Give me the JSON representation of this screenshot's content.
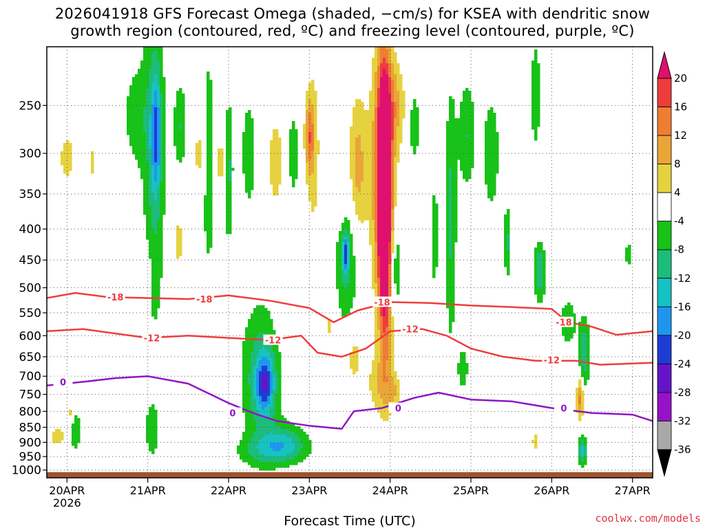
{
  "title": {
    "line1": "2026041918 GFS Forecast Omega (shaded, −cm/s) for KSEA with dendritic snow",
    "line2": "growth region (contoured, red, ºC) and freezing level (contoured, purple, ºC)"
  },
  "credit": "coolwx.com/models",
  "chart_data": {
    "type": "heatmap",
    "xlabel": "Forecast Time (UTC)",
    "ylabel": "",
    "x_ticks": [
      "20APR",
      "21APR",
      "22APR",
      "23APR",
      "24APR",
      "25APR",
      "26APR",
      "27APR"
    ],
    "x_year_label": "2026",
    "x_range_days": [
      -0.25,
      7.25
    ],
    "y_axis": "pressure (hPa), log scale, inverted",
    "y_ticks": [
      250,
      300,
      350,
      400,
      450,
      500,
      550,
      600,
      650,
      700,
      750,
      800,
      850,
      900,
      950,
      1000
    ],
    "y_range": [
      200,
      1030
    ],
    "grid": true,
    "colorbar": {
      "labels": [
        20,
        16,
        12,
        8,
        4,
        -4,
        -8,
        -12,
        -16,
        -20,
        -24,
        -28,
        -32,
        -36
      ],
      "bins": [
        {
          "color": "#e0106e"
        },
        {
          "color": "#ef3c3c"
        },
        {
          "color": "#ef7d32"
        },
        {
          "color": "#e9a537"
        },
        {
          "color": "#e6d23f"
        },
        {
          "color": "#ffffff"
        },
        {
          "color": "#18c218"
        },
        {
          "color": "#1cbc7a"
        },
        {
          "color": "#17c2c2"
        },
        {
          "color": "#1e96f0"
        },
        {
          "color": "#1e3cd2"
        },
        {
          "color": "#6414c8"
        },
        {
          "color": "#9612c8"
        },
        {
          "color": "#a8a8a8"
        },
        {
          "color": "#000000"
        }
      ]
    },
    "omega_blobs": [
      {
        "day": 0.0,
        "p": 305,
        "dd": 0.1,
        "dlp": 0.1,
        "v": 5
      },
      {
        "day": -0.12,
        "p": 880,
        "dd": 0.08,
        "dlp": 0.03,
        "v": 6
      },
      {
        "day": 0.05,
        "p": 810,
        "dd": 0.03,
        "dlp": 0.03,
        "v": 7
      },
      {
        "day": 0.1,
        "p": 860,
        "dd": 0.05,
        "dlp": 0.06,
        "v": -8
      },
      {
        "day": 0.3,
        "p": 310,
        "dd": 0.03,
        "dlp": 0.08,
        "v": 5
      },
      {
        "day": 0.6,
        "p": 720,
        "dd": 0.05,
        "dlp": 0.06,
        "v": 4
      },
      {
        "day": 0.85,
        "p": 260,
        "dd": 0.12,
        "dlp": 0.15,
        "v": -6
      },
      {
        "day": 0.95,
        "p": 470,
        "dd": 0.06,
        "dlp": 0.08,
        "v": 5
      },
      {
        "day": 1.08,
        "p": 300,
        "dd": 0.1,
        "dlp": 0.5,
        "v": -9
      },
      {
        "day": 1.1,
        "p": 280,
        "dd": 0.04,
        "dlp": 0.15,
        "v": -14
      },
      {
        "day": 1.05,
        "p": 860,
        "dd": 0.06,
        "dlp": 0.07,
        "v": -7
      },
      {
        "day": 1.4,
        "p": 270,
        "dd": 0.06,
        "dlp": 0.12,
        "v": -8
      },
      {
        "day": 1.38,
        "p": 420,
        "dd": 0.07,
        "dlp": 0.1,
        "v": 5
      },
      {
        "day": 1.65,
        "p": 300,
        "dd": 0.06,
        "dlp": 0.14,
        "v": 6
      },
      {
        "day": 1.75,
        "p": 310,
        "dd": 0.06,
        "dlp": 0.3,
        "v": -8
      },
      {
        "day": 1.9,
        "p": 310,
        "dd": 0.04,
        "dlp": 0.12,
        "v": 6
      },
      {
        "day": 2.0,
        "p": 320,
        "dd": 0.04,
        "dlp": 0.2,
        "v": -9
      },
      {
        "day": 2.25,
        "p": 300,
        "dd": 0.06,
        "dlp": 0.14,
        "v": -8
      },
      {
        "day": 2.4,
        "p": 700,
        "dd": 0.18,
        "dlp": 0.2,
        "v": -10
      },
      {
        "day": 2.45,
        "p": 720,
        "dd": 0.08,
        "dlp": 0.08,
        "v": -16
      },
      {
        "day": 2.5,
        "p": 930,
        "dd": 0.3,
        "dlp": 0.04,
        "v": -7
      },
      {
        "day": 2.7,
        "p": 900,
        "dd": 0.2,
        "dlp": 0.05,
        "v": -10
      },
      {
        "day": 2.65,
        "p": 560,
        "dd": 0.05,
        "dlp": 0.06,
        "v": 5
      },
      {
        "day": 2.58,
        "p": 310,
        "dd": 0.08,
        "dlp": 0.14,
        "v": 6
      },
      {
        "day": 2.8,
        "p": 300,
        "dd": 0.05,
        "dlp": 0.12,
        "v": -7
      },
      {
        "day": 3.0,
        "p": 280,
        "dd": 0.04,
        "dlp": 0.1,
        "v": 12
      },
      {
        "day": 3.05,
        "p": 300,
        "dd": 0.06,
        "dlp": 0.25,
        "v": 6
      },
      {
        "day": 3.25,
        "p": 560,
        "dd": 0.06,
        "dlp": 0.15,
        "v": 5
      },
      {
        "day": 3.35,
        "p": 360,
        "dd": 0.06,
        "dlp": 0.1,
        "v": 5
      },
      {
        "day": 3.45,
        "p": 450,
        "dd": 0.12,
        "dlp": 0.18,
        "v": -9
      },
      {
        "day": 3.45,
        "p": 440,
        "dd": 0.03,
        "dlp": 0.05,
        "v": -15
      },
      {
        "day": 3.55,
        "p": 650,
        "dd": 0.07,
        "dlp": 0.08,
        "v": 6
      },
      {
        "day": 3.6,
        "p": 320,
        "dd": 0.08,
        "dlp": 0.2,
        "v": 10
      },
      {
        "day": 3.9,
        "p": 320,
        "dd": 0.1,
        "dlp": 0.35,
        "v": 14
      },
      {
        "day": 3.92,
        "p": 330,
        "dd": 0.05,
        "dlp": 0.3,
        "v": 21
      },
      {
        "day": 3.95,
        "p": 420,
        "dd": 0.06,
        "dlp": 0.35,
        "v": 18
      },
      {
        "day": 4.05,
        "p": 250,
        "dd": 0.1,
        "dlp": 0.12,
        "v": 8
      },
      {
        "day": 3.85,
        "p": 720,
        "dd": 0.1,
        "dlp": 0.08,
        "v": 6
      },
      {
        "day": 4.05,
        "p": 460,
        "dd": 0.06,
        "dlp": 0.14,
        "v": -10
      },
      {
        "day": 4.3,
        "p": 270,
        "dd": 0.05,
        "dlp": 0.1,
        "v": -7
      },
      {
        "day": 4.05,
        "p": 740,
        "dd": 0.06,
        "dlp": 0.05,
        "v": 7
      },
      {
        "day": 4.55,
        "p": 410,
        "dd": 0.03,
        "dlp": 0.14,
        "v": -8
      },
      {
        "day": 4.75,
        "p": 380,
        "dd": 0.05,
        "dlp": 0.35,
        "v": -9
      },
      {
        "day": 4.95,
        "p": 280,
        "dd": 0.08,
        "dlp": 0.15,
        "v": -8
      },
      {
        "day": 4.9,
        "p": 680,
        "dd": 0.05,
        "dlp": 0.06,
        "v": -7
      },
      {
        "day": 5.25,
        "p": 300,
        "dd": 0.07,
        "dlp": 0.15,
        "v": -8
      },
      {
        "day": 5.45,
        "p": 420,
        "dd": 0.03,
        "dlp": 0.1,
        "v": -9
      },
      {
        "day": 5.8,
        "p": 240,
        "dd": 0.04,
        "dlp": 0.15,
        "v": -8
      },
      {
        "day": 5.85,
        "p": 470,
        "dd": 0.05,
        "dlp": 0.08,
        "v": -12
      },
      {
        "day": 5.8,
        "p": 900,
        "dd": 0.05,
        "dlp": 0.04,
        "v": 5
      },
      {
        "day": 6.2,
        "p": 570,
        "dd": 0.07,
        "dlp": 0.06,
        "v": -8
      },
      {
        "day": 6.35,
        "p": 760,
        "dd": 0.03,
        "dlp": 0.06,
        "v": 14
      },
      {
        "day": 6.4,
        "p": 640,
        "dd": 0.05,
        "dlp": 0.1,
        "v": -11
      },
      {
        "day": 6.38,
        "p": 930,
        "dd": 0.04,
        "dlp": 0.04,
        "v": -14
      },
      {
        "day": 6.95,
        "p": 440,
        "dd": 0.03,
        "dlp": 0.03,
        "v": -8
      }
    ],
    "dgz_contours": [
      {
        "label": "-18",
        "color": "#f03c3c",
        "points": [
          [
            -0.25,
            520
          ],
          [
            0.1,
            510
          ],
          [
            0.5,
            518
          ],
          [
            1.0,
            520
          ],
          [
            1.5,
            522
          ],
          [
            2.0,
            515
          ],
          [
            2.5,
            525
          ],
          [
            3.0,
            540
          ],
          [
            3.3,
            570
          ],
          [
            3.6,
            545
          ],
          [
            4.0,
            528
          ],
          [
            4.5,
            530
          ],
          [
            5.0,
            535
          ],
          [
            5.5,
            538
          ],
          [
            6.0,
            542
          ],
          [
            6.2,
            570
          ],
          [
            6.5,
            580
          ],
          [
            6.8,
            598
          ],
          [
            7.25,
            590
          ]
        ],
        "label_at": [
          [
            0.6,
            518
          ],
          [
            1.7,
            522
          ],
          [
            3.9,
            528
          ],
          [
            6.15,
            570
          ]
        ]
      },
      {
        "label": "-12",
        "color": "#f03c3c",
        "points": [
          [
            -0.25,
            590
          ],
          [
            0.2,
            585
          ],
          [
            0.6,
            595
          ],
          [
            1.0,
            605
          ],
          [
            1.5,
            600
          ],
          [
            2.0,
            605
          ],
          [
            2.5,
            610
          ],
          [
            2.9,
            600
          ],
          [
            3.1,
            640
          ],
          [
            3.4,
            650
          ],
          [
            3.7,
            630
          ],
          [
            4.0,
            590
          ],
          [
            4.4,
            585
          ],
          [
            4.7,
            600
          ],
          [
            5.0,
            630
          ],
          [
            5.4,
            650
          ],
          [
            5.8,
            660
          ],
          [
            6.3,
            660
          ],
          [
            6.6,
            670
          ],
          [
            7.25,
            665
          ]
        ],
        "label_at": [
          [
            1.05,
            605
          ],
          [
            2.55,
            610
          ],
          [
            4.25,
            585
          ],
          [
            6.0,
            658
          ]
        ]
      },
      {
        "label": "0",
        "color": "#9014c8",
        "points": [
          [
            -0.25,
            725
          ],
          [
            0.2,
            715
          ],
          [
            0.6,
            705
          ],
          [
            1.0,
            700
          ],
          [
            1.5,
            720
          ],
          [
            2.0,
            775
          ],
          [
            2.3,
            805
          ],
          [
            2.6,
            830
          ],
          [
            3.0,
            845
          ],
          [
            3.4,
            855
          ],
          [
            3.55,
            800
          ],
          [
            3.9,
            790
          ],
          [
            4.3,
            760
          ],
          [
            4.6,
            745
          ],
          [
            5.0,
            765
          ],
          [
            5.5,
            770
          ],
          [
            6.0,
            790
          ],
          [
            6.5,
            805
          ],
          [
            7.0,
            810
          ],
          [
            7.25,
            830
          ]
        ],
        "label_at": [
          [
            -0.05,
            715
          ],
          [
            2.05,
            805
          ],
          [
            4.1,
            790
          ],
          [
            6.15,
            790
          ]
        ]
      }
    ]
  }
}
